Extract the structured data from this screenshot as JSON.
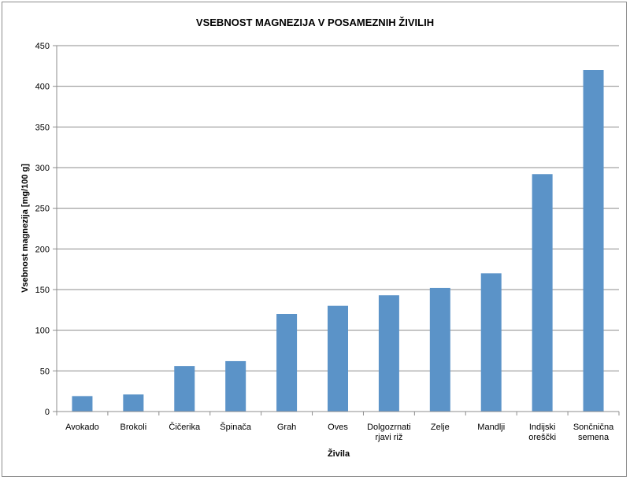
{
  "chart_data": {
    "type": "bar",
    "title": "VSEBNOST MAGNEZIJA V POSAMEZNIH ŽIVILIH",
    "xlabel": "Živila",
    "ylabel": "Vsebnost magnezija [mg/100 g]",
    "categories": [
      [
        "Avokado"
      ],
      [
        "Brokoli"
      ],
      [
        "Čičerika"
      ],
      [
        "Špinača"
      ],
      [
        "Grah"
      ],
      [
        "Oves"
      ],
      [
        "Dolgozrnati",
        "rjavi riž"
      ],
      [
        "Zelje"
      ],
      [
        "Mandlji"
      ],
      [
        "Indijski",
        "oreščki"
      ],
      [
        "Sončnična",
        "semena"
      ]
    ],
    "values": [
      19,
      21,
      56,
      62,
      120,
      130,
      143,
      152,
      170,
      292,
      420
    ],
    "ylim": [
      0,
      450
    ],
    "yticks": [
      0,
      50,
      100,
      150,
      200,
      250,
      300,
      350,
      400,
      450
    ],
    "grid": true,
    "bar_color": "#5b93c8",
    "grid_color": "#8c8c8c"
  }
}
